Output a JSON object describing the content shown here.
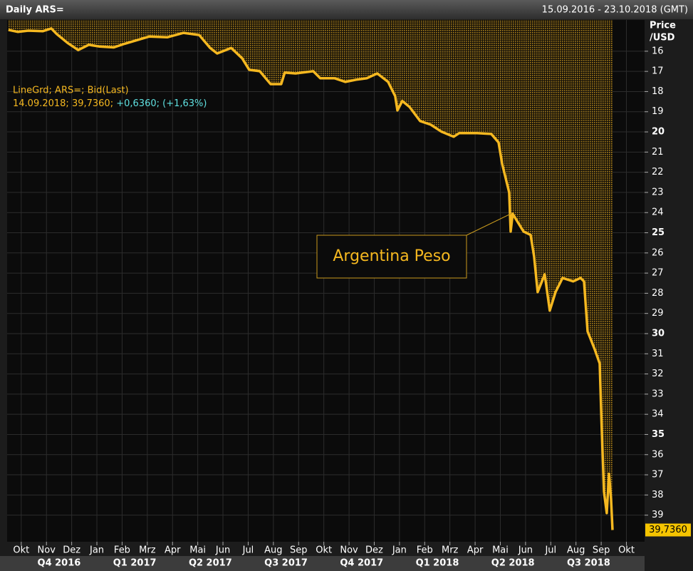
{
  "chart_data": {
    "type": "line",
    "title": "Daily ARS=",
    "date_range": "15.09.2016 - 23.10.2018 (GMT)",
    "y_label": [
      "Price",
      "/USD"
    ],
    "info_line1": "LineGrd; ARS=; Bid(Last)",
    "info_line2": [
      "14.09.2018; 39,7360;",
      "+0,6360; (+1,63%)"
    ],
    "annotation": "Argentina Peso",
    "y_inverted": true,
    "grid": true,
    "xlim": [
      -0.56,
      24.72
    ],
    "ylim": [
      14.45,
      40.32
    ],
    "xticks": [
      {
        "value": 0,
        "label": "Okt"
      },
      {
        "value": 1,
        "label": "Nov"
      },
      {
        "value": 2,
        "label": "Dez"
      },
      {
        "value": 3,
        "label": "Jan"
      },
      {
        "value": 4,
        "label": "Feb"
      },
      {
        "value": 5,
        "label": "Mrz"
      },
      {
        "value": 6,
        "label": "Apr"
      },
      {
        "value": 7,
        "label": "Mai"
      },
      {
        "value": 8,
        "label": "Jun"
      },
      {
        "value": 9,
        "label": "Jul"
      },
      {
        "value": 10,
        "label": "Aug"
      },
      {
        "value": 11,
        "label": "Sep"
      },
      {
        "value": 12,
        "label": "Okt"
      },
      {
        "value": 13,
        "label": "Nov"
      },
      {
        "value": 14,
        "label": "Dez"
      },
      {
        "value": 15,
        "label": "Jan"
      },
      {
        "value": 16,
        "label": "Feb"
      },
      {
        "value": 17,
        "label": "Mrz"
      },
      {
        "value": 18,
        "label": "Apr"
      },
      {
        "value": 19,
        "label": "Mai"
      },
      {
        "value": 20,
        "label": "Jun"
      },
      {
        "value": 21,
        "label": "Jul"
      },
      {
        "value": 22,
        "label": "Aug"
      },
      {
        "value": 23,
        "label": "Sep"
      },
      {
        "value": 24,
        "label": "Okt"
      }
    ],
    "quarter_labels": [
      {
        "value": 1.5,
        "label": "Q4 2016"
      },
      {
        "value": 4.5,
        "label": "Q1 2017"
      },
      {
        "value": 7.5,
        "label": "Q2 2017"
      },
      {
        "value": 10.5,
        "label": "Q3 2017"
      },
      {
        "value": 13.5,
        "label": "Q4 2017"
      },
      {
        "value": 16.5,
        "label": "Q1 2018"
      },
      {
        "value": 19.5,
        "label": "Q2 2018"
      },
      {
        "value": 22.5,
        "label": "Q3 2018"
      }
    ],
    "yticks": [
      16,
      17,
      18,
      19,
      20,
      21,
      22,
      23,
      24,
      25,
      26,
      27,
      28,
      29,
      30,
      31,
      32,
      33,
      34,
      35,
      36,
      37,
      38,
      39
    ],
    "series": [
      {
        "name": "ARS=",
        "color": "#f5b820",
        "x": [
          -0.51,
          -0.14,
          0.28,
          0.85,
          1.19,
          1.41,
          1.84,
          2.26,
          2.68,
          3.11,
          3.67,
          4.1,
          4.52,
          5.08,
          5.79,
          6.44,
          7.06,
          7.49,
          7.77,
          8.33,
          8.76,
          9.04,
          9.46,
          9.89,
          10.31,
          10.45,
          10.88,
          11.58,
          11.86,
          12.43,
          12.85,
          13.28,
          13.7,
          14.12,
          14.55,
          14.83,
          14.92,
          15.11,
          15.4,
          15.82,
          16.24,
          16.67,
          17.15,
          17.37,
          18.08,
          18.64,
          18.93,
          19.07,
          19.35,
          19.41,
          19.49,
          19.92,
          20.2,
          20.34,
          20.48,
          20.76,
          20.96,
          21.19,
          21.47,
          21.89,
          22.18,
          22.32,
          22.46,
          22.74,
          22.94,
          23.02,
          23.11,
          23.22,
          23.31,
          23.39,
          23.45
        ],
        "values": [
          14.94,
          15.04,
          14.98,
          15.01,
          14.87,
          15.15,
          15.59,
          15.94,
          15.68,
          15.77,
          15.81,
          15.63,
          15.48,
          15.27,
          15.31,
          15.09,
          15.2,
          15.84,
          16.11,
          15.84,
          16.35,
          16.92,
          16.99,
          17.63,
          17.63,
          17.06,
          17.1,
          16.99,
          17.34,
          17.34,
          17.52,
          17.41,
          17.34,
          17.1,
          17.52,
          18.23,
          18.93,
          18.47,
          18.76,
          19.46,
          19.64,
          19.99,
          20.24,
          20.06,
          20.06,
          20.1,
          20.52,
          21.58,
          23.0,
          24.94,
          24.06,
          24.94,
          25.11,
          26.18,
          27.94,
          27.06,
          28.86,
          27.94,
          27.24,
          27.41,
          27.24,
          27.41,
          29.89,
          30.77,
          31.48,
          34.66,
          37.84,
          38.9,
          36.95,
          38.19,
          39.736
        ]
      }
    ],
    "last_label": {
      "value": 39.736,
      "label": "39,7360"
    }
  }
}
